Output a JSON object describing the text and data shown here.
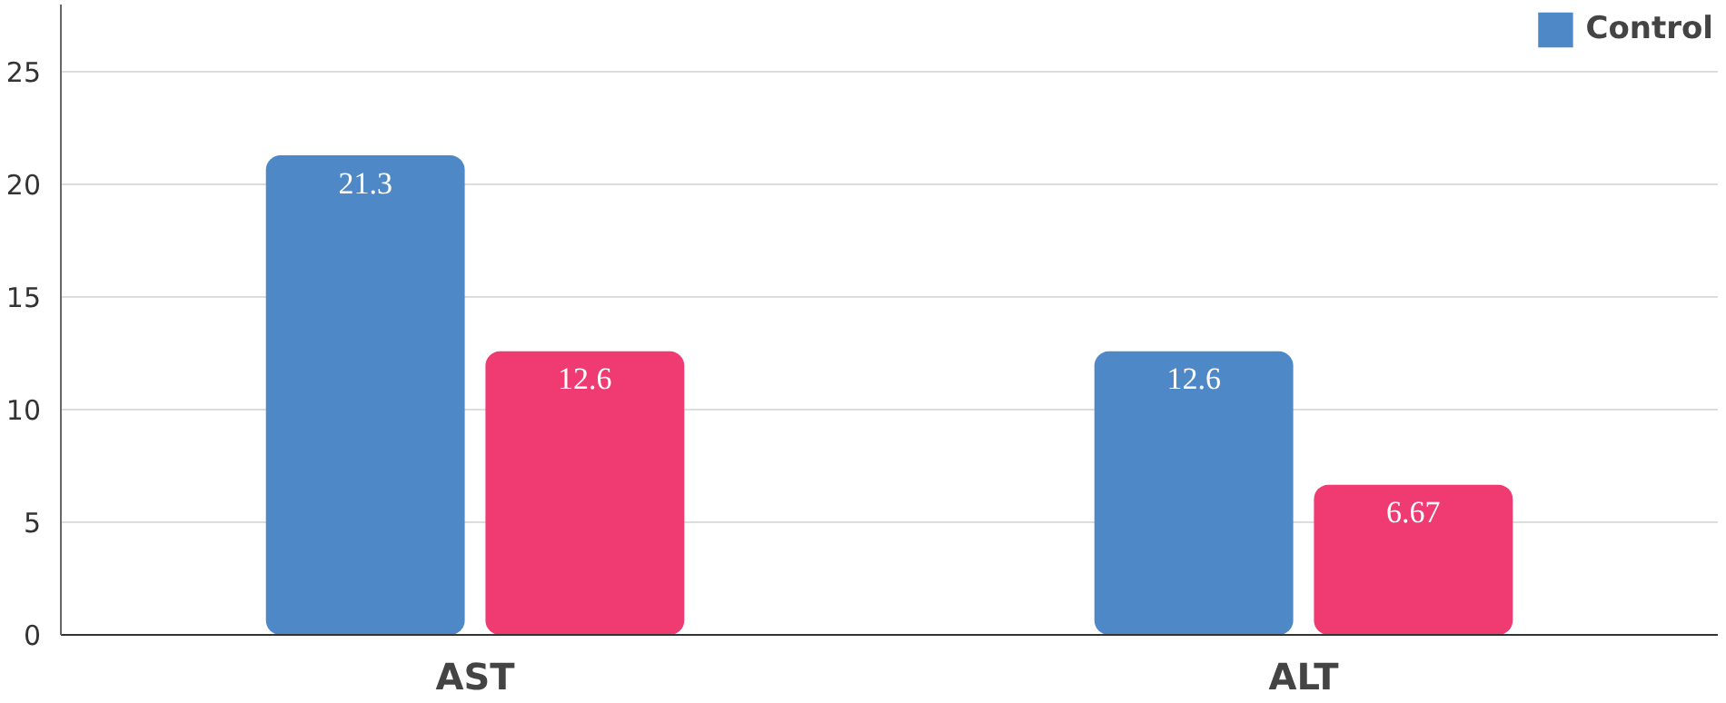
{
  "chart_data": {
    "type": "bar",
    "categories": [
      "AST",
      "ALT"
    ],
    "series": [
      {
        "name": "Control",
        "color": "#4f88c6",
        "values": [
          21.3,
          12.6
        ]
      },
      {
        "color": "#f03a72",
        "values": [
          12.6,
          6.67
        ]
      }
    ],
    "ylim": [
      0,
      28
    ],
    "yticks": [
      0,
      5,
      10,
      15,
      20,
      25
    ],
    "grid": "y",
    "legend": "top right",
    "data_labels": true
  }
}
